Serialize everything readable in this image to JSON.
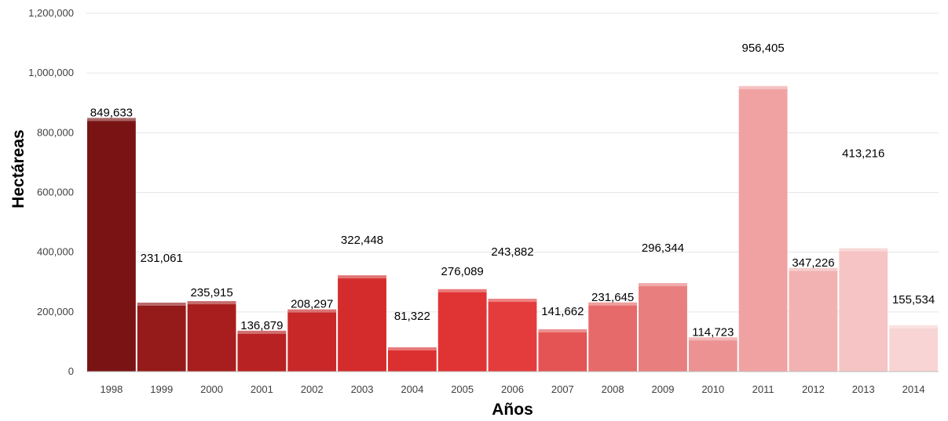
{
  "chart_data": {
    "type": "bar",
    "title": "",
    "xlabel": "Años",
    "ylabel": "Hectáreas",
    "ylim": [
      0,
      1200000
    ],
    "yticks": [
      0,
      200000,
      400000,
      600000,
      800000,
      1000000,
      1200000
    ],
    "ytick_labels": [
      "0",
      "200,000",
      "400,000",
      "600,000",
      "800,000",
      "1,000,000",
      "1,200,000"
    ],
    "grid": true,
    "legend": "none",
    "categories": [
      "1998",
      "1999",
      "2000",
      "2001",
      "2002",
      "2003",
      "2004",
      "2005",
      "2006",
      "2007",
      "2008",
      "2009",
      "2010",
      "2011",
      "2012",
      "2013",
      "2014"
    ],
    "values": [
      849633,
      231061,
      235915,
      136879,
      208297,
      322448,
      81322,
      276089,
      243882,
      141662,
      231645,
      296344,
      114723,
      956405,
      347226,
      413216,
      155534
    ],
    "value_labels": [
      "849,633",
      "231,061",
      "235,915",
      "136,879",
      "208,297",
      "322,448",
      "81,322",
      "276,089",
      "243,882",
      "141,662",
      "231,645",
      "296,344",
      "114,723",
      "956,405",
      "347,226",
      "413,216",
      "155,534"
    ],
    "colors": [
      "#7a1414",
      "#951a1a",
      "#a81e1e",
      "#b82222",
      "#c82828",
      "#d42c2c",
      "#dc3030",
      "#e03434",
      "#e43c3c",
      "#e45454",
      "#e66a6a",
      "#e87e7e",
      "#ec9292",
      "#f0a2a2",
      "#f2b2b2",
      "#f6c4c4",
      "#f8d4d4"
    ]
  }
}
